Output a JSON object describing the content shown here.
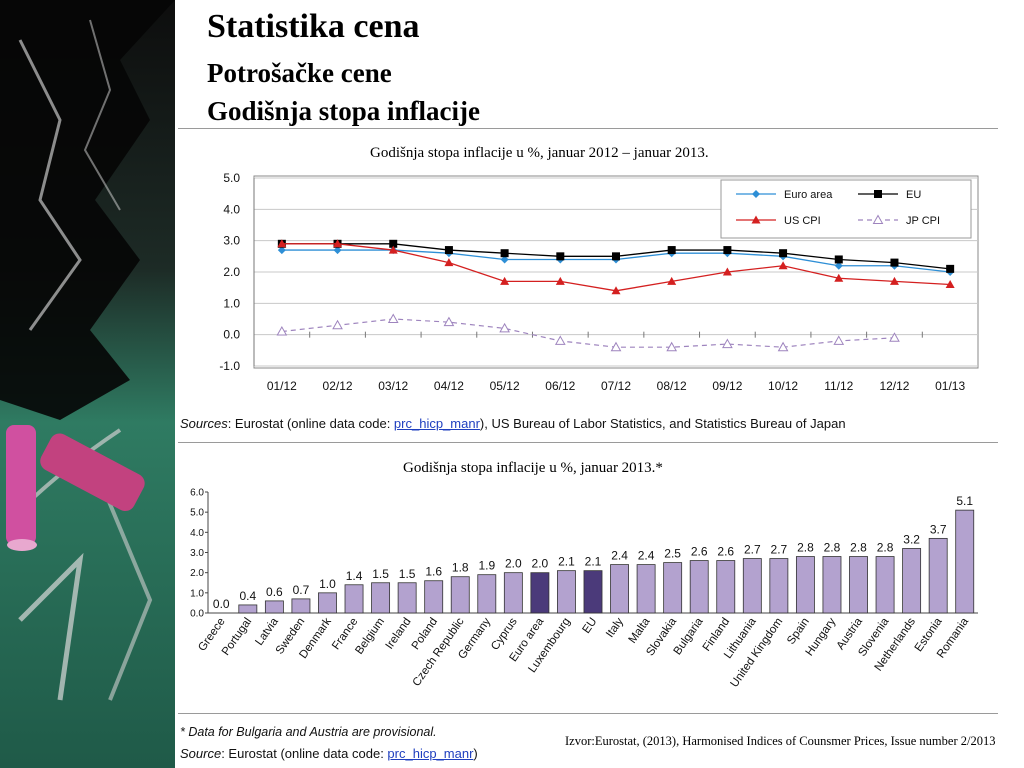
{
  "header": {
    "title": "Statistika cena",
    "subtitle1": "Potrošačke cene",
    "subtitle2": "Godišnja stopa inflacije"
  },
  "chart1_caption": "Godišnja stopa inflacije u %, januar 2012 – januar 2013.",
  "chart1_source": {
    "label": "Sources",
    "text1": ": Eurostat (online data code: ",
    "link": "prc_hicp_manr",
    "text2": "), US Bureau of Labor Statistics, and Statistics Bureau of Japan"
  },
  "chart2_caption": "Godišnja stopa inflacije u %, januar 2013.*",
  "chart2_note": "* Data for Bulgaria and Austria are provisional.",
  "chart2_source": {
    "label": "Source",
    "text1": ": Eurostat (online data code: ",
    "link": "prc_hicp_manr",
    "text2": ")"
  },
  "izvor": "Izvor:Eurostat, (2013),  Harmonised Indices of Counsmer Prices, Issue number 2/2013",
  "colors": {
    "euro_area": "#2e8fd6",
    "eu": "#000000",
    "us_cpi": "#d42020",
    "jp_cpi": "#9e84be",
    "bar_fill": "#b3a2cf",
    "bar_highlight": "#4b3a7a"
  },
  "chart_data": [
    {
      "type": "line",
      "x": [
        "01/12",
        "02/12",
        "03/12",
        "04/12",
        "05/12",
        "06/12",
        "07/12",
        "08/12",
        "09/12",
        "10/12",
        "11/12",
        "12/12",
        "01/13"
      ],
      "ylim": [
        -1.0,
        5.0
      ],
      "yticks": [
        "5.0",
        "4.0",
        "3.0",
        "2.0",
        "1.0",
        "0.0",
        "-1.0"
      ],
      "grid": true,
      "legend_position": "top-right",
      "series": [
        {
          "name": "Euro area",
          "values": [
            2.7,
            2.7,
            2.7,
            2.6,
            2.4,
            2.4,
            2.4,
            2.6,
            2.6,
            2.5,
            2.2,
            2.2,
            2.0
          ]
        },
        {
          "name": "EU",
          "values": [
            2.9,
            2.9,
            2.9,
            2.7,
            2.6,
            2.5,
            2.5,
            2.7,
            2.7,
            2.6,
            2.4,
            2.3,
            2.1
          ]
        },
        {
          "name": "US CPI",
          "values": [
            2.9,
            2.9,
            2.7,
            2.3,
            1.7,
            1.7,
            1.4,
            1.7,
            2.0,
            2.2,
            1.8,
            1.7,
            1.6
          ]
        },
        {
          "name": "JP CPI",
          "values": [
            0.1,
            0.3,
            0.5,
            0.4,
            0.2,
            -0.2,
            -0.4,
            -0.4,
            -0.3,
            -0.4,
            -0.2,
            -0.1,
            null
          ]
        }
      ]
    },
    {
      "type": "bar",
      "categories": [
        "Greece",
        "Portugal",
        "Latvia",
        "Sweden",
        "Denmark",
        "France",
        "Belgium",
        "Ireland",
        "Poland",
        "Czech Republic",
        "Germany",
        "Cyprus",
        "Euro area",
        "Luxembourg",
        "EU",
        "Italy",
        "Malta",
        "Slovakia",
        "Bulgaria",
        "Finland",
        "Lithuania",
        "United Kingdom",
        "Spain",
        "Hungary",
        "Austria",
        "Slovenia",
        "Netherlands",
        "Estonia",
        "Romania"
      ],
      "values": [
        0.0,
        0.4,
        0.6,
        0.7,
        1.0,
        1.4,
        1.5,
        1.5,
        1.6,
        1.8,
        1.9,
        2.0,
        2.0,
        2.1,
        2.1,
        2.4,
        2.4,
        2.5,
        2.6,
        2.6,
        2.7,
        2.7,
        2.8,
        2.8,
        2.8,
        2.8,
        3.2,
        3.7,
        5.1
      ],
      "labels": [
        "0.0",
        "0.4",
        "0.6",
        "0.7",
        "1.0",
        "1.4",
        "1.5",
        "1.5",
        "1.6",
        "1.8",
        "1.9",
        "2.0",
        "2.0",
        "2.1",
        "2.1",
        "2.4",
        "2.4",
        "2.5",
        "2.6",
        "2.6",
        "2.7",
        "2.7",
        "2.8",
        "2.8",
        "2.8",
        "2.8",
        "3.2",
        "3.7",
        "5.1"
      ],
      "highlight": [
        "Euro area",
        "EU"
      ],
      "ylim": [
        0.0,
        6.0
      ],
      "yticks": [
        "6.0",
        "5.0",
        "4.0",
        "3.0",
        "2.0",
        "1.0",
        "0.0"
      ]
    }
  ]
}
